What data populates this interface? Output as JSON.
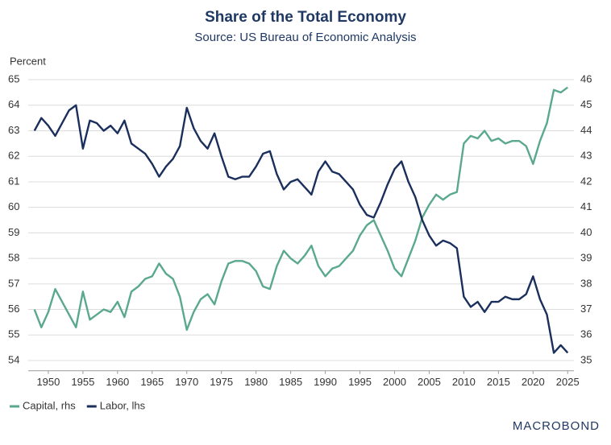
{
  "chart_data": {
    "type": "line",
    "title": "Share of the Total Economy",
    "subtitle": "Source: US Bureau of Economic Analysis",
    "y_label": "Percent",
    "source_logo": "MACROBOND",
    "x": [
      1948,
      1949,
      1950,
      1951,
      1952,
      1953,
      1954,
      1955,
      1956,
      1957,
      1958,
      1959,
      1960,
      1961,
      1962,
      1963,
      1964,
      1965,
      1966,
      1967,
      1968,
      1969,
      1970,
      1971,
      1972,
      1973,
      1974,
      1975,
      1976,
      1977,
      1978,
      1979,
      1980,
      1981,
      1982,
      1983,
      1984,
      1985,
      1986,
      1987,
      1988,
      1989,
      1990,
      1991,
      1992,
      1993,
      1994,
      1995,
      1996,
      1997,
      1998,
      1999,
      2000,
      2001,
      2002,
      2003,
      2004,
      2005,
      2006,
      2007,
      2008,
      2009,
      2010,
      2011,
      2012,
      2013,
      2014,
      2015,
      2016,
      2017,
      2018,
      2019,
      2020,
      2021,
      2022,
      2023,
      2024,
      2025
    ],
    "xlim": [
      1947.1,
      2025.9
    ],
    "xticks": [
      1950,
      1955,
      1960,
      1965,
      1970,
      1975,
      1980,
      1985,
      1990,
      1995,
      2000,
      2005,
      2010,
      2015,
      2020,
      2025
    ],
    "ylim": [
      53.6,
      65.2
    ],
    "yticks": [
      54,
      55,
      56,
      57,
      58,
      59,
      60,
      61,
      62,
      63,
      64,
      65
    ],
    "y2lim": [
      34.6,
      46.2
    ],
    "y2ticks": [
      35,
      36,
      37,
      38,
      39,
      40,
      41,
      42,
      43,
      44,
      45,
      46
    ],
    "grid": true,
    "legend": "bottom-left",
    "series": [
      {
        "name": "Capital, rhs",
        "color": "#5aa88d",
        "axis": "y2",
        "values": [
          37.0,
          36.3,
          36.9,
          37.8,
          37.3,
          36.8,
          36.3,
          37.7,
          36.6,
          36.8,
          37.0,
          36.9,
          37.3,
          36.7,
          37.7,
          37.9,
          38.2,
          38.3,
          38.8,
          38.4,
          38.2,
          37.5,
          36.2,
          36.9,
          37.4,
          37.6,
          37.2,
          38.1,
          38.8,
          38.9,
          38.9,
          38.8,
          38.5,
          37.9,
          37.8,
          38.7,
          39.3,
          39.0,
          38.8,
          39.1,
          39.5,
          38.7,
          38.3,
          38.6,
          38.7,
          39.0,
          39.3,
          39.9,
          40.3,
          40.5,
          39.9,
          39.3,
          38.6,
          38.3,
          39.0,
          39.7,
          40.6,
          41.1,
          41.5,
          41.3,
          41.5,
          41.6,
          43.5,
          43.8,
          43.7,
          44.0,
          43.6,
          43.7,
          43.5,
          43.6,
          43.6,
          43.4,
          42.7,
          43.6,
          44.3,
          45.6,
          45.5,
          45.7
        ]
      },
      {
        "name": "Labor, lhs",
        "color": "#1b2f5c",
        "values": [
          63.0,
          63.5,
          63.2,
          62.8,
          63.3,
          63.8,
          64.0,
          62.3,
          63.4,
          63.3,
          63.0,
          63.2,
          62.9,
          63.4,
          62.5,
          62.3,
          62.1,
          61.7,
          61.2,
          61.6,
          61.9,
          62.4,
          63.9,
          63.1,
          62.6,
          62.3,
          62.9,
          62.0,
          61.2,
          61.1,
          61.2,
          61.2,
          61.6,
          62.1,
          62.2,
          61.3,
          60.7,
          61.0,
          61.1,
          60.8,
          60.5,
          61.4,
          61.8,
          61.4,
          61.3,
          61.0,
          60.7,
          60.1,
          59.7,
          59.6,
          60.2,
          60.9,
          61.5,
          61.8,
          61.0,
          60.4,
          59.5,
          58.9,
          58.5,
          58.7,
          58.6,
          58.4,
          56.5,
          56.1,
          56.3,
          55.9,
          56.3,
          56.3,
          56.5,
          56.4,
          56.4,
          56.6,
          57.3,
          56.4,
          55.8,
          54.3,
          54.6,
          54.3
        ]
      }
    ]
  }
}
